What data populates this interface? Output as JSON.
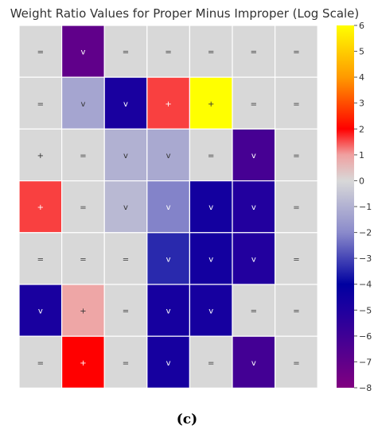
{
  "chart_data": {
    "type": "heatmap",
    "title": "Weight Ratio Values for Proper Minus Improper (Log Scale)",
    "rows": 7,
    "cols": 7,
    "values": [
      [
        0,
        -7,
        0,
        0,
        0,
        0,
        0
      ],
      [
        0,
        -1.3,
        -4.8,
        1.6,
        6,
        0,
        0
      ],
      [
        0,
        0,
        -1,
        -1.2,
        0,
        -6.2,
        0
      ],
      [
        1.6,
        0,
        -0.8,
        -2.1,
        -4.6,
        -5.1,
        0
      ],
      [
        0,
        0,
        0,
        -3.4,
        -4.6,
        -5.1,
        0
      ],
      [
        -4.8,
        0.9,
        0,
        -4.7,
        -4.7,
        0,
        0
      ],
      [
        0,
        2,
        0,
        -4.7,
        0,
        -6.1,
        0
      ]
    ],
    "labels": [
      [
        "=",
        "v",
        "=",
        "=",
        "=",
        "=",
        "="
      ],
      [
        "=",
        "v",
        "v",
        "+",
        "+",
        "=",
        "="
      ],
      [
        "+",
        "=",
        "v",
        "v",
        "=",
        "v",
        "="
      ],
      [
        "+",
        "=",
        "v",
        "v",
        "v",
        "v",
        "="
      ],
      [
        "=",
        "=",
        "=",
        "v",
        "v",
        "v",
        "="
      ],
      [
        "v",
        "+",
        "=",
        "v",
        "v",
        "=",
        "="
      ],
      [
        "=",
        "+",
        "=",
        "v",
        "=",
        "v",
        "="
      ]
    ],
    "colorbar": {
      "min": -8,
      "max": 6,
      "ticks": [
        "6",
        "5",
        "4",
        "3",
        "2",
        "1",
        "0",
        "−1",
        "−2",
        "−3",
        "−4",
        "−5",
        "−6",
        "−7",
        "−8"
      ],
      "tick_values": [
        6,
        5,
        4,
        3,
        2,
        1,
        0,
        -1,
        -2,
        -3,
        -4,
        -5,
        -6,
        -7,
        -8
      ],
      "colors": [
        {
          "v": -8,
          "c": "#800080"
        },
        {
          "v": -5,
          "c": "#1f009f"
        },
        {
          "v": -4,
          "c": "#0000a0"
        },
        {
          "v": -2,
          "c": "#8a8acb"
        },
        {
          "v": 0,
          "c": "#d8d8d8"
        },
        {
          "v": 1,
          "c": "#f0a0a0"
        },
        {
          "v": 2,
          "c": "#ff0000"
        },
        {
          "v": 4,
          "c": "#ff9a00"
        },
        {
          "v": 6,
          "c": "#ffff00"
        }
      ]
    },
    "grid": true
  },
  "caption": "(c)"
}
